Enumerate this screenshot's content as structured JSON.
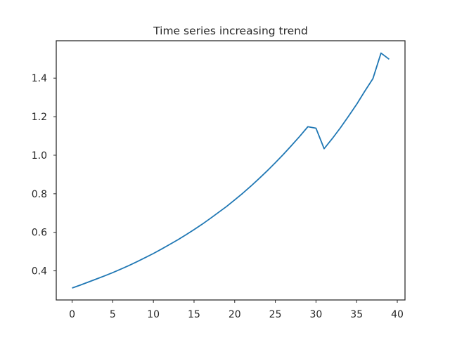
{
  "chart_data": {
    "type": "line",
    "title": "Time series increasing trend",
    "xlabel": "",
    "ylabel": "",
    "xlim": [
      -1.95,
      40.95
    ],
    "ylim": [
      0.249,
      1.594
    ],
    "xticks": [
      0,
      5,
      10,
      15,
      20,
      25,
      30,
      35,
      40
    ],
    "yticks": [
      0.4,
      0.6,
      0.8,
      1.0,
      1.2,
      1.4
    ],
    "xtick_labels": [
      "0",
      "5",
      "10",
      "15",
      "20",
      "25",
      "30",
      "35",
      "40"
    ],
    "ytick_labels": [
      "0.4",
      "0.6",
      "0.8",
      "1.0",
      "1.2",
      "1.4"
    ],
    "grid": false,
    "series": [
      {
        "name": "series",
        "color": "#1f77b4",
        "x": [
          0,
          1,
          2,
          3,
          4,
          5,
          6,
          7,
          8,
          9,
          10,
          11,
          12,
          13,
          14,
          15,
          16,
          17,
          18,
          19,
          20,
          21,
          22,
          23,
          24,
          25,
          26,
          27,
          28,
          29,
          30,
          31,
          32,
          33,
          34,
          35,
          36,
          37,
          38,
          39
        ],
        "values": [
          0.311,
          0.326,
          0.342,
          0.358,
          0.374,
          0.391,
          0.409,
          0.428,
          0.448,
          0.469,
          0.49,
          0.513,
          0.537,
          0.561,
          0.587,
          0.614,
          0.642,
          0.672,
          0.703,
          0.734,
          0.768,
          0.803,
          0.84,
          0.879,
          0.919,
          0.961,
          1.005,
          1.051,
          1.098,
          1.148,
          1.14,
          1.034,
          1.086,
          1.142,
          1.202,
          1.264,
          1.332,
          1.397,
          1.53,
          1.498
        ]
      }
    ]
  }
}
